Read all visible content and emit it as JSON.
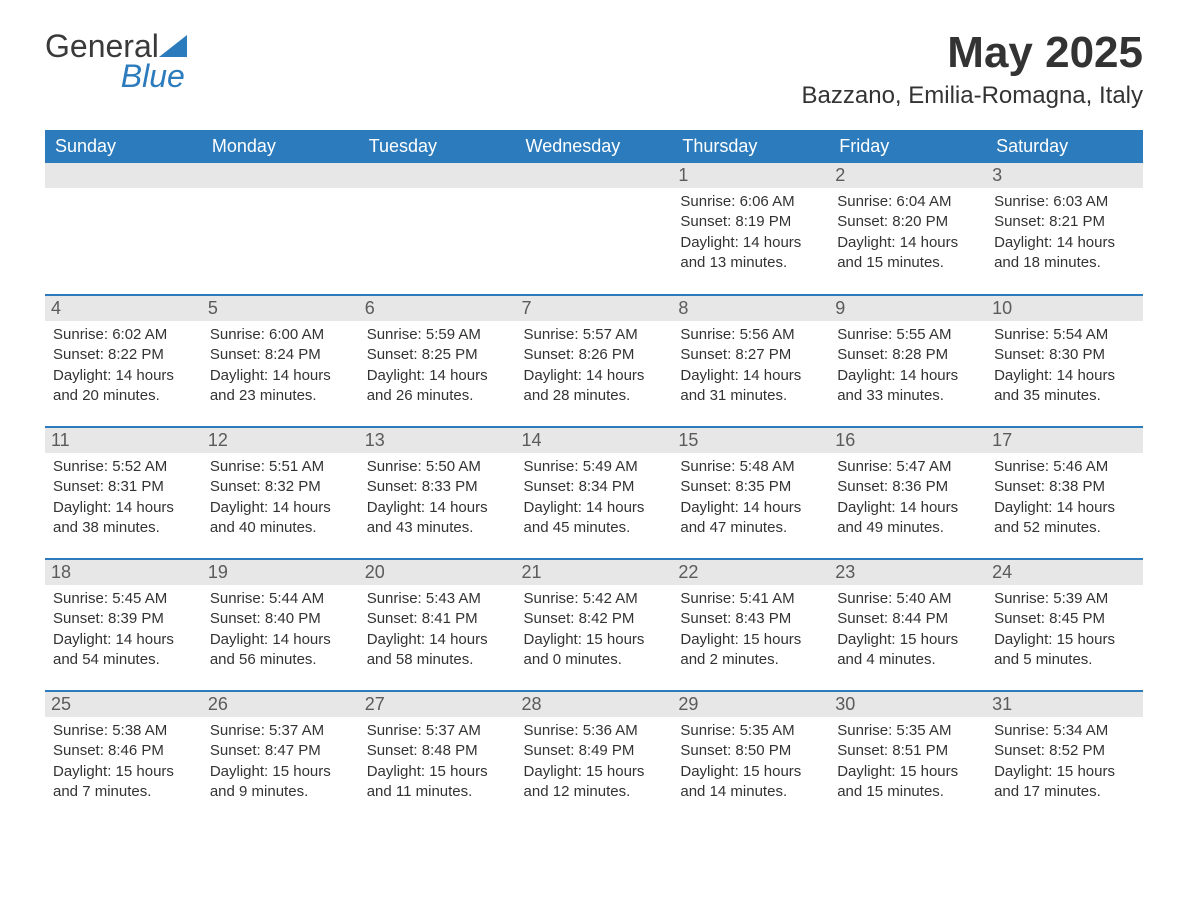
{
  "logo": {
    "word1": "General",
    "word2": "Blue",
    "triangle_color": "#2b7bbd",
    "word1_color": "#3a3a3a",
    "word2_color": "#2b7bbd"
  },
  "header": {
    "month_title": "May 2025",
    "location": "Bazzano, Emilia-Romagna, Italy"
  },
  "style": {
    "header_bg": "#2b7bbd",
    "header_text": "#ffffff",
    "daynum_bg": "#e7e7e7",
    "daynum_text": "#5b5b5b",
    "body_text": "#333333",
    "week_border": "#2b7bbd",
    "background": "#ffffff",
    "header_fontsize": 18,
    "title_fontsize": 44,
    "location_fontsize": 24,
    "daynum_fontsize": 18,
    "info_fontsize": 15
  },
  "calendar": {
    "columns": [
      "Sunday",
      "Monday",
      "Tuesday",
      "Wednesday",
      "Thursday",
      "Friday",
      "Saturday"
    ],
    "weeks": [
      [
        null,
        null,
        null,
        null,
        {
          "day": "1",
          "sunrise": "Sunrise: 6:06 AM",
          "sunset": "Sunset: 8:19 PM",
          "daylight1": "Daylight: 14 hours",
          "daylight2": "and 13 minutes."
        },
        {
          "day": "2",
          "sunrise": "Sunrise: 6:04 AM",
          "sunset": "Sunset: 8:20 PM",
          "daylight1": "Daylight: 14 hours",
          "daylight2": "and 15 minutes."
        },
        {
          "day": "3",
          "sunrise": "Sunrise: 6:03 AM",
          "sunset": "Sunset: 8:21 PM",
          "daylight1": "Daylight: 14 hours",
          "daylight2": "and 18 minutes."
        }
      ],
      [
        {
          "day": "4",
          "sunrise": "Sunrise: 6:02 AM",
          "sunset": "Sunset: 8:22 PM",
          "daylight1": "Daylight: 14 hours",
          "daylight2": "and 20 minutes."
        },
        {
          "day": "5",
          "sunrise": "Sunrise: 6:00 AM",
          "sunset": "Sunset: 8:24 PM",
          "daylight1": "Daylight: 14 hours",
          "daylight2": "and 23 minutes."
        },
        {
          "day": "6",
          "sunrise": "Sunrise: 5:59 AM",
          "sunset": "Sunset: 8:25 PM",
          "daylight1": "Daylight: 14 hours",
          "daylight2": "and 26 minutes."
        },
        {
          "day": "7",
          "sunrise": "Sunrise: 5:57 AM",
          "sunset": "Sunset: 8:26 PM",
          "daylight1": "Daylight: 14 hours",
          "daylight2": "and 28 minutes."
        },
        {
          "day": "8",
          "sunrise": "Sunrise: 5:56 AM",
          "sunset": "Sunset: 8:27 PM",
          "daylight1": "Daylight: 14 hours",
          "daylight2": "and 31 minutes."
        },
        {
          "day": "9",
          "sunrise": "Sunrise: 5:55 AM",
          "sunset": "Sunset: 8:28 PM",
          "daylight1": "Daylight: 14 hours",
          "daylight2": "and 33 minutes."
        },
        {
          "day": "10",
          "sunrise": "Sunrise: 5:54 AM",
          "sunset": "Sunset: 8:30 PM",
          "daylight1": "Daylight: 14 hours",
          "daylight2": "and 35 minutes."
        }
      ],
      [
        {
          "day": "11",
          "sunrise": "Sunrise: 5:52 AM",
          "sunset": "Sunset: 8:31 PM",
          "daylight1": "Daylight: 14 hours",
          "daylight2": "and 38 minutes."
        },
        {
          "day": "12",
          "sunrise": "Sunrise: 5:51 AM",
          "sunset": "Sunset: 8:32 PM",
          "daylight1": "Daylight: 14 hours",
          "daylight2": "and 40 minutes."
        },
        {
          "day": "13",
          "sunrise": "Sunrise: 5:50 AM",
          "sunset": "Sunset: 8:33 PM",
          "daylight1": "Daylight: 14 hours",
          "daylight2": "and 43 minutes."
        },
        {
          "day": "14",
          "sunrise": "Sunrise: 5:49 AM",
          "sunset": "Sunset: 8:34 PM",
          "daylight1": "Daylight: 14 hours",
          "daylight2": "and 45 minutes."
        },
        {
          "day": "15",
          "sunrise": "Sunrise: 5:48 AM",
          "sunset": "Sunset: 8:35 PM",
          "daylight1": "Daylight: 14 hours",
          "daylight2": "and 47 minutes."
        },
        {
          "day": "16",
          "sunrise": "Sunrise: 5:47 AM",
          "sunset": "Sunset: 8:36 PM",
          "daylight1": "Daylight: 14 hours",
          "daylight2": "and 49 minutes."
        },
        {
          "day": "17",
          "sunrise": "Sunrise: 5:46 AM",
          "sunset": "Sunset: 8:38 PM",
          "daylight1": "Daylight: 14 hours",
          "daylight2": "and 52 minutes."
        }
      ],
      [
        {
          "day": "18",
          "sunrise": "Sunrise: 5:45 AM",
          "sunset": "Sunset: 8:39 PM",
          "daylight1": "Daylight: 14 hours",
          "daylight2": "and 54 minutes."
        },
        {
          "day": "19",
          "sunrise": "Sunrise: 5:44 AM",
          "sunset": "Sunset: 8:40 PM",
          "daylight1": "Daylight: 14 hours",
          "daylight2": "and 56 minutes."
        },
        {
          "day": "20",
          "sunrise": "Sunrise: 5:43 AM",
          "sunset": "Sunset: 8:41 PM",
          "daylight1": "Daylight: 14 hours",
          "daylight2": "and 58 minutes."
        },
        {
          "day": "21",
          "sunrise": "Sunrise: 5:42 AM",
          "sunset": "Sunset: 8:42 PM",
          "daylight1": "Daylight: 15 hours",
          "daylight2": "and 0 minutes."
        },
        {
          "day": "22",
          "sunrise": "Sunrise: 5:41 AM",
          "sunset": "Sunset: 8:43 PM",
          "daylight1": "Daylight: 15 hours",
          "daylight2": "and 2 minutes."
        },
        {
          "day": "23",
          "sunrise": "Sunrise: 5:40 AM",
          "sunset": "Sunset: 8:44 PM",
          "daylight1": "Daylight: 15 hours",
          "daylight2": "and 4 minutes."
        },
        {
          "day": "24",
          "sunrise": "Sunrise: 5:39 AM",
          "sunset": "Sunset: 8:45 PM",
          "daylight1": "Daylight: 15 hours",
          "daylight2": "and 5 minutes."
        }
      ],
      [
        {
          "day": "25",
          "sunrise": "Sunrise: 5:38 AM",
          "sunset": "Sunset: 8:46 PM",
          "daylight1": "Daylight: 15 hours",
          "daylight2": "and 7 minutes."
        },
        {
          "day": "26",
          "sunrise": "Sunrise: 5:37 AM",
          "sunset": "Sunset: 8:47 PM",
          "daylight1": "Daylight: 15 hours",
          "daylight2": "and 9 minutes."
        },
        {
          "day": "27",
          "sunrise": "Sunrise: 5:37 AM",
          "sunset": "Sunset: 8:48 PM",
          "daylight1": "Daylight: 15 hours",
          "daylight2": "and 11 minutes."
        },
        {
          "day": "28",
          "sunrise": "Sunrise: 5:36 AM",
          "sunset": "Sunset: 8:49 PM",
          "daylight1": "Daylight: 15 hours",
          "daylight2": "and 12 minutes."
        },
        {
          "day": "29",
          "sunrise": "Sunrise: 5:35 AM",
          "sunset": "Sunset: 8:50 PM",
          "daylight1": "Daylight: 15 hours",
          "daylight2": "and 14 minutes."
        },
        {
          "day": "30",
          "sunrise": "Sunrise: 5:35 AM",
          "sunset": "Sunset: 8:51 PM",
          "daylight1": "Daylight: 15 hours",
          "daylight2": "and 15 minutes."
        },
        {
          "day": "31",
          "sunrise": "Sunrise: 5:34 AM",
          "sunset": "Sunset: 8:52 PM",
          "daylight1": "Daylight: 15 hours",
          "daylight2": "and 17 minutes."
        }
      ]
    ]
  }
}
